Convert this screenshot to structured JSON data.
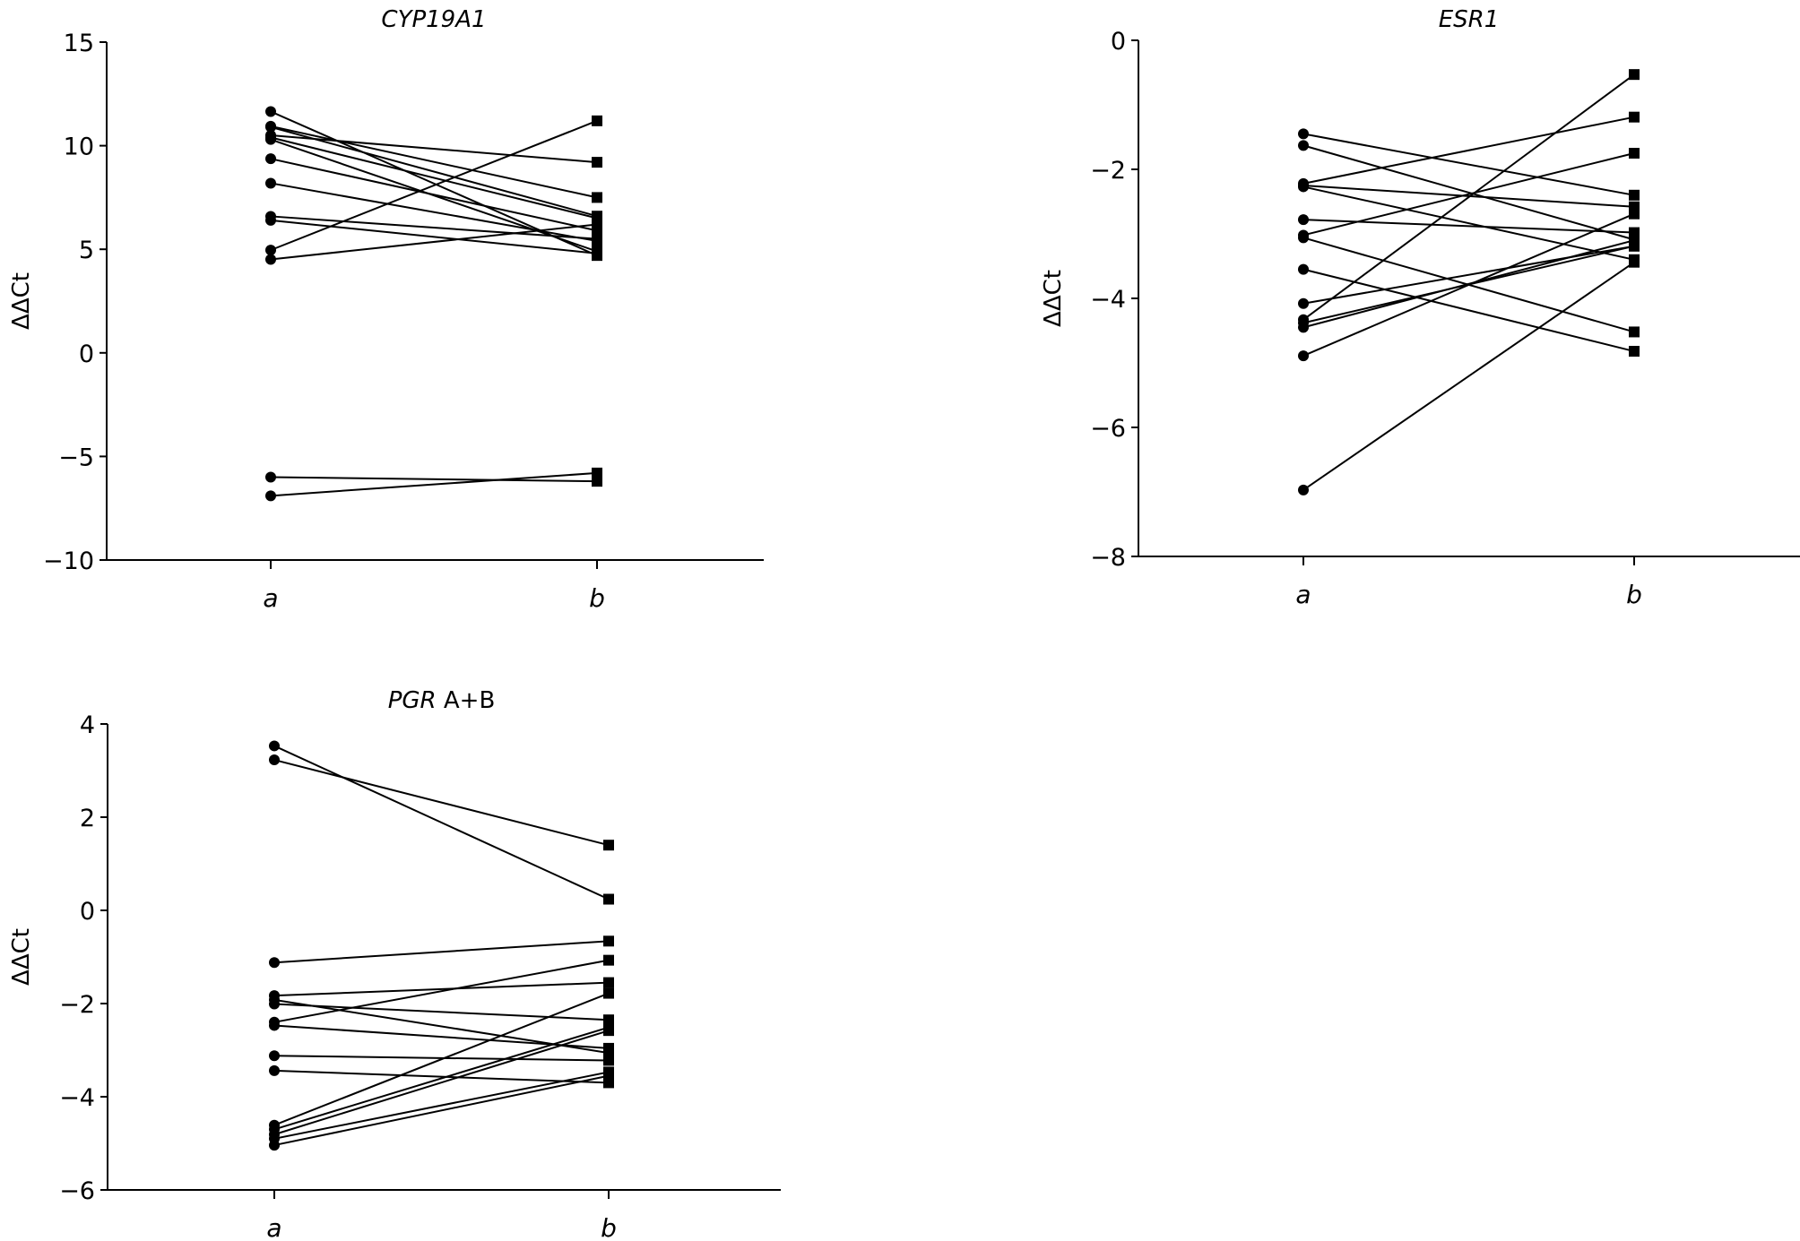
{
  "chart_data": [
    {
      "type": "line",
      "title": "CYP19A1",
      "title_italic": "CYP19A1",
      "title_suffix": "",
      "xlabel": "",
      "ylabel": "ΔΔCt",
      "categories": [
        "a",
        "b"
      ],
      "ylim": [
        -10,
        15
      ],
      "yticks": [
        15,
        10,
        5,
        0,
        -5,
        -10
      ],
      "ytick_labels": [
        "15",
        "10",
        "5",
        "0",
        "−5",
        "−10"
      ],
      "markers": {
        "a": "circle",
        "b": "square"
      },
      "pairs": [
        [
          11.65,
          4.7
        ],
        [
          10.94,
          7.5
        ],
        [
          10.9,
          6.6
        ],
        [
          10.5,
          9.2
        ],
        [
          10.4,
          6.5
        ],
        [
          10.3,
          4.9
        ],
        [
          9.37,
          5.9
        ],
        [
          8.19,
          5.4
        ],
        [
          6.59,
          5.5
        ],
        [
          6.4,
          4.8
        ],
        [
          4.96,
          11.2
        ],
        [
          4.51,
          6.2
        ],
        [
          -6.0,
          -6.2
        ],
        [
          -6.9,
          -5.8
        ]
      ],
      "grid": false
    },
    {
      "type": "line",
      "title": "ESR1",
      "title_italic": "ESR1",
      "title_suffix": "",
      "xlabel": "",
      "ylabel": "ΔΔCt",
      "categories": [
        "a",
        "b"
      ],
      "ylim": [
        -8,
        0
      ],
      "yticks": [
        0,
        -2,
        -4,
        -6,
        -8
      ],
      "ytick_labels": [
        "0",
        "−2",
        "−4",
        "−6",
        "−8"
      ],
      "markers": {
        "a": "circle",
        "b": "square"
      },
      "pairs": [
        [
          -1.45,
          -2.4
        ],
        [
          -1.63,
          -3.09
        ],
        [
          -2.22,
          -1.19
        ],
        [
          -2.25,
          -2.58
        ],
        [
          -2.27,
          -3.4
        ],
        [
          -2.78,
          -2.98
        ],
        [
          -3.02,
          -1.75
        ],
        [
          -3.06,
          -4.52
        ],
        [
          -3.55,
          -4.82
        ],
        [
          -4.08,
          -3.19
        ],
        [
          -4.33,
          -0.53
        ],
        [
          -4.38,
          -3.19
        ],
        [
          -4.45,
          -3.1
        ],
        [
          -4.89,
          -2.69
        ],
        [
          -6.97,
          -3.44
        ]
      ],
      "grid": false
    },
    {
      "type": "line",
      "title": "PGR A+B",
      "title_italic": "PGR",
      "title_suffix": " A+B",
      "xlabel": "",
      "ylabel": "ΔΔCt",
      "categories": [
        "a",
        "b"
      ],
      "ylim": [
        -6,
        4
      ],
      "yticks": [
        4,
        2,
        0,
        -2,
        -4,
        -6
      ],
      "ytick_labels": [
        "4",
        "2",
        "0",
        "−2",
        "−4",
        "−6"
      ],
      "markers": {
        "a": "circle",
        "b": "square"
      },
      "pairs": [
        [
          3.53,
          0.24
        ],
        [
          3.23,
          1.4
        ],
        [
          -1.12,
          -0.66
        ],
        [
          -1.83,
          -1.55
        ],
        [
          -1.92,
          -3.06
        ],
        [
          -2.01,
          -2.35
        ],
        [
          -2.4,
          -1.07
        ],
        [
          -2.47,
          -2.96
        ],
        [
          -3.12,
          -3.22
        ],
        [
          -3.44,
          -3.7
        ],
        [
          -4.61,
          -1.78
        ],
        [
          -4.7,
          -2.51
        ],
        [
          -4.81,
          -2.58
        ],
        [
          -4.9,
          -3.47
        ],
        [
          -5.04,
          -3.55
        ]
      ],
      "grid": false
    }
  ]
}
